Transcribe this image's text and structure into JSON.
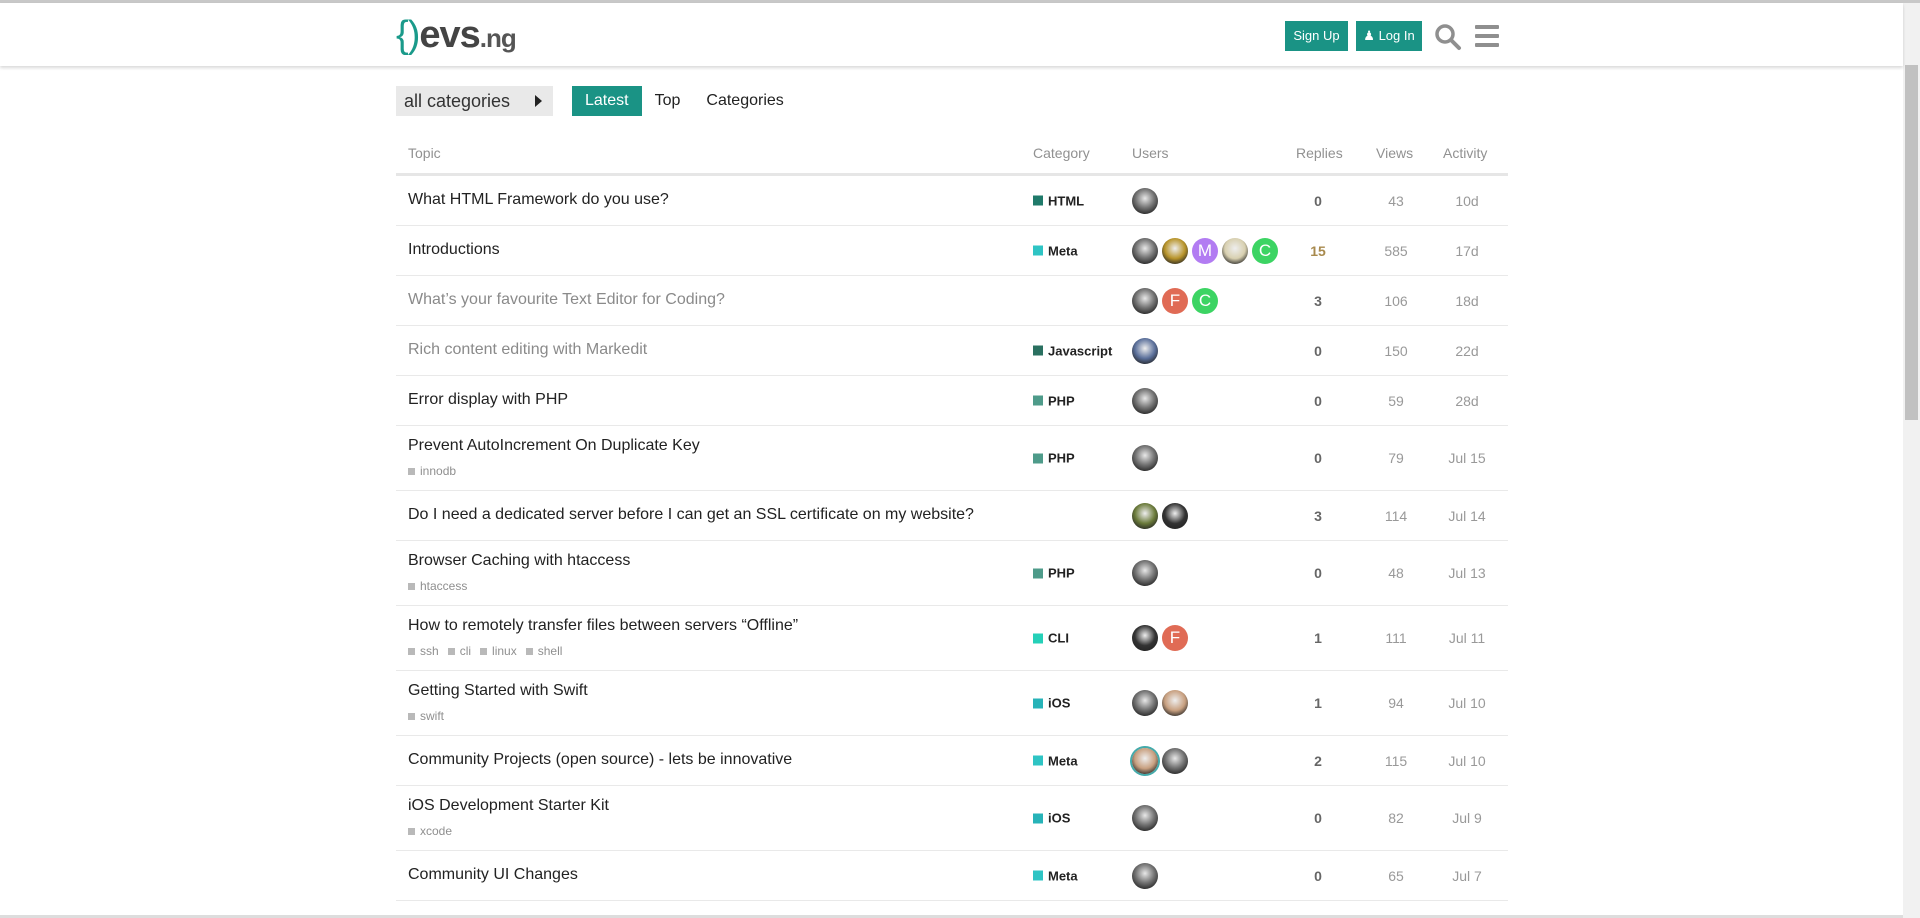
{
  "header": {
    "logo": {
      "brace": "{)",
      "ev": "evs",
      "ng": ".ng"
    },
    "signup_label": "Sign Up",
    "login_label": "Log In",
    "accent": "#1a9385"
  },
  "nav": {
    "category_dropdown": "all categories",
    "tabs": [
      {
        "label": "Latest",
        "active": true
      },
      {
        "label": "Top",
        "active": false
      },
      {
        "label": "Categories",
        "active": false
      }
    ]
  },
  "table": {
    "columns": {
      "topic": "Topic",
      "category": "Category",
      "users": "Users",
      "replies": "Replies",
      "views": "Views",
      "activity": "Activity"
    },
    "rows": [
      {
        "title": "What HTML Framework do you use?",
        "tags": [],
        "category": "HTML",
        "category_color": "#1f7a6a",
        "users": [
          {
            "t": "img"
          }
        ],
        "replies": "0",
        "views": "43",
        "activity": "10d"
      },
      {
        "title": "Introductions",
        "tags": [],
        "category": "Meta",
        "category_color": "#2ec4c4",
        "users": [
          {
            "t": "img"
          },
          {
            "t": "img",
            "color": "#b8942a"
          },
          {
            "t": "letter",
            "letter": "M",
            "color": "#b27cf2"
          },
          {
            "t": "img",
            "color": "#d8d0b0"
          },
          {
            "t": "letter",
            "letter": "C",
            "color": "#3cd463"
          }
        ],
        "replies": "15",
        "hot": true,
        "views": "585",
        "activity": "17d"
      },
      {
        "title": "What’s your favourite Text Editor for Coding?",
        "visited": true,
        "tags": [],
        "category": "",
        "category_color": "",
        "users": [
          {
            "t": "img"
          },
          {
            "t": "letter",
            "letter": "F",
            "color": "#e06b55"
          },
          {
            "t": "letter",
            "letter": "C",
            "color": "#3cd463"
          }
        ],
        "replies": "3",
        "views": "106",
        "activity": "18d"
      },
      {
        "title": "Rich content editing with Markedit",
        "visited": true,
        "tags": [],
        "category": "Javascript",
        "category_color": "#2a7060",
        "users": [
          {
            "t": "img",
            "color": "#5a6f9a"
          }
        ],
        "replies": "0",
        "views": "150",
        "activity": "22d"
      },
      {
        "title": "Error display with PHP",
        "tags": [],
        "category": "PHP",
        "category_color": "#4e9b8a",
        "users": [
          {
            "t": "img"
          }
        ],
        "replies": "0",
        "views": "59",
        "activity": "28d"
      },
      {
        "title": "Prevent AutoIncrement On Duplicate Key",
        "tags": [
          "innodb"
        ],
        "category": "PHP",
        "category_color": "#4e9b8a",
        "users": [
          {
            "t": "img"
          }
        ],
        "replies": "0",
        "views": "79",
        "activity": "Jul 15"
      },
      {
        "title": "Do I need a dedicated server before I can get an SSL certificate on my website?",
        "tags": [],
        "category": "",
        "category_color": "",
        "users": [
          {
            "t": "img",
            "color": "#6a7a3a"
          },
          {
            "t": "img",
            "color": "#333"
          }
        ],
        "replies": "3",
        "views": "114",
        "activity": "Jul 14"
      },
      {
        "title": "Browser Caching with htaccess",
        "tags": [
          "htaccess"
        ],
        "category": "PHP",
        "category_color": "#4e9b8a",
        "users": [
          {
            "t": "img"
          }
        ],
        "replies": "0",
        "views": "48",
        "activity": "Jul 13"
      },
      {
        "title": "How to remotely transfer files between servers “Offline”",
        "tags": [
          "ssh",
          "cli",
          "linux",
          "shell"
        ],
        "category": "CLI",
        "category_color": "#25d0b8",
        "users": [
          {
            "t": "img",
            "color": "#333"
          },
          {
            "t": "letter",
            "letter": "F",
            "color": "#e06b55"
          }
        ],
        "replies": "1",
        "views": "111",
        "activity": "Jul 11"
      },
      {
        "title": "Getting Started with Swift",
        "tags": [
          "swift"
        ],
        "category": "iOS",
        "category_color": "#27b3b8",
        "users": [
          {
            "t": "img"
          },
          {
            "t": "img",
            "color": "#c8a080"
          }
        ],
        "replies": "1",
        "views": "94",
        "activity": "Jul 10"
      },
      {
        "title": "Community Projects (open source) - lets be innovative",
        "tags": [],
        "category": "Meta",
        "category_color": "#2ec4c4",
        "users": [
          {
            "t": "img",
            "color": "#c8a080",
            "ring": true
          },
          {
            "t": "img"
          }
        ],
        "replies": "2",
        "views": "115",
        "activity": "Jul 10"
      },
      {
        "title": "iOS Development Starter Kit",
        "tags": [
          "xcode"
        ],
        "category": "iOS",
        "category_color": "#27b3b8",
        "users": [
          {
            "t": "img"
          }
        ],
        "replies": "0",
        "views": "82",
        "activity": "Jul 9"
      },
      {
        "title": "Community UI Changes",
        "tags": [],
        "category": "Meta",
        "category_color": "#2ec4c4",
        "users": [
          {
            "t": "img"
          }
        ],
        "replies": "0",
        "views": "65",
        "activity": "Jul 7"
      }
    ]
  }
}
